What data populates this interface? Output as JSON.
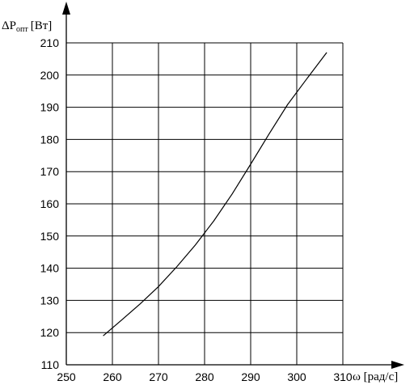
{
  "chart_data": {
    "type": "line",
    "title": "",
    "ylabel_base": "ΔP",
    "ylabel_sub": "опт",
    "ylabel_unit": "[Вт]",
    "xlabel": "ω [рад/с]",
    "xlim": [
      250,
      310
    ],
    "ylim": [
      110,
      210
    ],
    "xticks": [
      250,
      260,
      270,
      280,
      290,
      300,
      310
    ],
    "yticks": [
      110,
      120,
      130,
      140,
      150,
      160,
      170,
      180,
      190,
      200,
      210
    ],
    "grid": true,
    "series": [
      {
        "x": [
          258,
          262,
          266,
          270,
          274,
          278,
          282,
          286,
          290,
          294,
          298,
          302,
          306.5
        ],
        "y": [
          119,
          123.9,
          128.9,
          134.3,
          140.5,
          147.2,
          154.7,
          163.1,
          172.3,
          181.7,
          190.8,
          198.5,
          207
        ]
      }
    ]
  }
}
